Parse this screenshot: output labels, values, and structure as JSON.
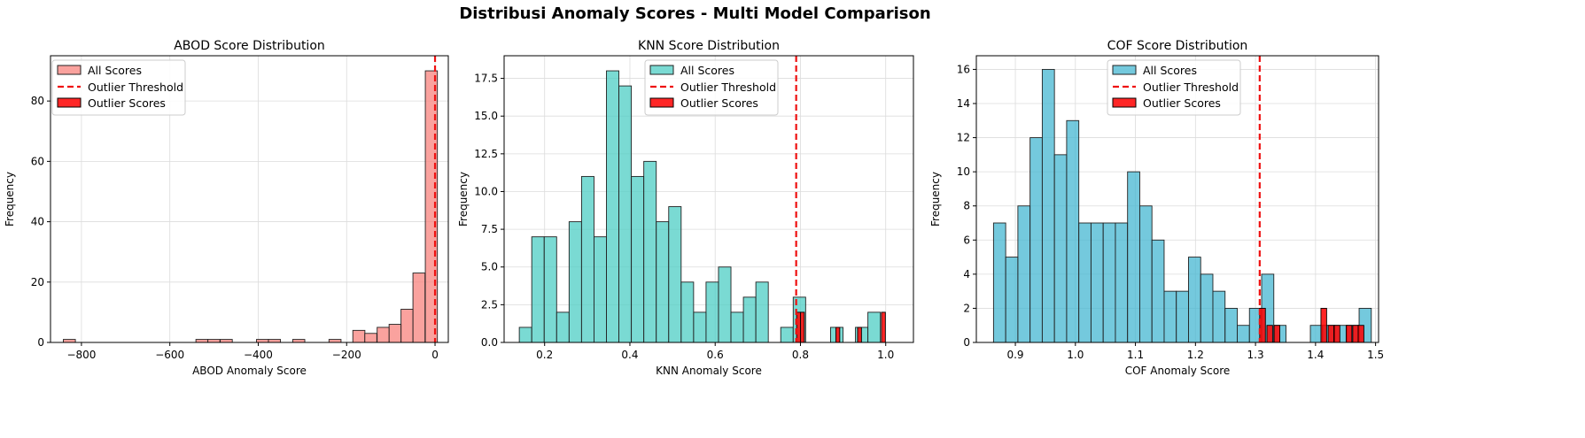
{
  "suptitle": "Distribusi Anomaly Scores - Multi Model Comparison",
  "colors": {
    "abod": "#f8837d",
    "knn": "#4ecdc4",
    "cof": "#45b7d1",
    "outlier": "#ff0000",
    "threshold": "#ee1111"
  },
  "chart_data": [
    {
      "type": "bar",
      "title": "ABOD Score Distribution",
      "xlabel": "ABOD Anomaly Score",
      "ylabel": "Frequency",
      "xlim": [
        -870,
        30
      ],
      "ylim": [
        0,
        95
      ],
      "xticks": [
        -800,
        -600,
        -400,
        -200,
        0
      ],
      "xtick_labels": [
        "−800",
        "−600",
        "−400",
        "−200",
        "0"
      ],
      "yticks": [
        0,
        20,
        40,
        60,
        80
      ],
      "ytick_labels": [
        "0",
        "20",
        "40",
        "60",
        "80"
      ],
      "grid": true,
      "legend": "top-left",
      "bin_width": 27.3,
      "threshold": 0,
      "series": [
        {
          "name": "All Scores",
          "color": "#f8837d",
          "bins": [
            [
              -841,
              1
            ],
            [
              -541,
              1
            ],
            [
              -514,
              1
            ],
            [
              -486,
              1
            ],
            [
              -404,
              1
            ],
            [
              -377,
              1
            ],
            [
              -322,
              1
            ],
            [
              -240,
              1
            ],
            [
              -186,
              4
            ],
            [
              -159,
              3
            ],
            [
              -131,
              5
            ],
            [
              -104,
              6
            ],
            [
              -77,
              11
            ],
            [
              -50,
              23
            ],
            [
              -22,
              90
            ]
          ]
        },
        {
          "name": "Outlier Scores",
          "color": "#ff0000",
          "bins": []
        }
      ],
      "threshold_label": "Outlier Threshold"
    },
    {
      "type": "bar",
      "title": "KNN Score Distribution",
      "xlabel": "KNN Anomaly Score",
      "ylabel": "Frequency",
      "xlim": [
        0.105,
        1.065
      ],
      "ylim": [
        0,
        19
      ],
      "xticks": [
        0.2,
        0.4,
        0.6,
        0.8,
        1.0
      ],
      "xtick_labels": [
        "0.2",
        "0.4",
        "0.6",
        "0.8",
        "1.0"
      ],
      "yticks": [
        0,
        2.5,
        5,
        7.5,
        10,
        12.5,
        15,
        17.5
      ],
      "ytick_labels": [
        "0.0",
        "2.5",
        "5.0",
        "7.5",
        "10.0",
        "12.5",
        "15.0",
        "17.5"
      ],
      "grid": true,
      "legend": "top-center",
      "bin_width": 0.0292,
      "threshold": 0.79,
      "series": [
        {
          "name": "All Scores",
          "color": "#4ecdc4",
          "bins": [
            [
              0.1406,
              1
            ],
            [
              0.1698,
              7
            ],
            [
              0.199,
              7
            ],
            [
              0.2282,
              2
            ],
            [
              0.2574,
              8
            ],
            [
              0.2866,
              11
            ],
            [
              0.3158,
              7
            ],
            [
              0.345,
              18
            ],
            [
              0.3742,
              17
            ],
            [
              0.4034,
              11
            ],
            [
              0.4326,
              12
            ],
            [
              0.4618,
              8
            ],
            [
              0.491,
              9
            ],
            [
              0.5202,
              4
            ],
            [
              0.5494,
              2
            ],
            [
              0.5786,
              4
            ],
            [
              0.6078,
              5
            ],
            [
              0.637,
              2
            ],
            [
              0.6662,
              3
            ],
            [
              0.6954,
              4
            ],
            [
              0.7538,
              1
            ],
            [
              0.783,
              3
            ],
            [
              0.8706,
              1
            ],
            [
              0.929,
              1
            ],
            [
              0.9582,
              2
            ]
          ]
        },
        {
          "name": "Outlier Scores",
          "color": "#ff0000",
          "bins": [
            [
              0.791,
              2
            ],
            [
              0.8,
              2
            ],
            [
              0.883,
              1
            ],
            [
              0.934,
              1
            ],
            [
              0.99,
              2
            ]
          ]
        }
      ],
      "outlier_width": 0.0092,
      "threshold_label": "Outlier Threshold"
    },
    {
      "type": "bar",
      "title": "COF Score Distribution",
      "xlabel": "COF Anomaly Score",
      "ylabel": "Frequency",
      "xlim": [
        0.835,
        1.505
      ],
      "ylim": [
        0,
        16.8
      ],
      "xticks": [
        0.9,
        1.0,
        1.1,
        1.2,
        1.3,
        1.4,
        1.5
      ],
      "xtick_labels": [
        "0.9",
        "1.0",
        "1.1",
        "1.2",
        "1.3",
        "1.4",
        "1.5"
      ],
      "yticks": [
        0,
        2,
        4,
        6,
        8,
        10,
        12,
        14,
        16
      ],
      "ytick_labels": [
        "0",
        "2",
        "4",
        "6",
        "8",
        "10",
        "12",
        "14",
        "16"
      ],
      "grid": true,
      "legend": "top-center",
      "bin_width": 0.0203,
      "threshold": 1.307,
      "series": [
        {
          "name": "All Scores",
          "color": "#45b7d1",
          "bins": [
            [
              0.8636,
              7
            ],
            [
              0.8839,
              5
            ],
            [
              0.9042,
              8
            ],
            [
              0.9245,
              12
            ],
            [
              0.9448,
              16
            ],
            [
              0.9651,
              11
            ],
            [
              0.9854,
              13
            ],
            [
              1.0057,
              7
            ],
            [
              1.026,
              7
            ],
            [
              1.0463,
              7
            ],
            [
              1.0666,
              7
            ],
            [
              1.0869,
              10
            ],
            [
              1.1072,
              8
            ],
            [
              1.1275,
              6
            ],
            [
              1.1478,
              3
            ],
            [
              1.1681,
              3
            ],
            [
              1.1884,
              5
            ],
            [
              1.2087,
              4
            ],
            [
              1.229,
              3
            ],
            [
              1.2493,
              2
            ],
            [
              1.2696,
              1
            ],
            [
              1.2899,
              2
            ],
            [
              1.3102,
              4
            ],
            [
              1.3305,
              1
            ],
            [
              1.3914,
              1
            ],
            [
              1.4117,
              1
            ],
            [
              1.432,
              1
            ],
            [
              1.4523,
              1
            ],
            [
              1.4726,
              2
            ]
          ]
        },
        {
          "name": "Outlier Scores",
          "color": "#ff0000",
          "bins": [
            [
              1.307,
              2
            ],
            [
              1.319,
              1
            ],
            [
              1.331,
              1
            ],
            [
              1.409,
              2
            ],
            [
              1.421,
              1
            ],
            [
              1.431,
              1
            ],
            [
              1.451,
              1
            ],
            [
              1.462,
              1
            ],
            [
              1.471,
              1
            ]
          ]
        }
      ],
      "outlier_width": 0.0095,
      "threshold_label": "Outlier Threshold"
    }
  ]
}
